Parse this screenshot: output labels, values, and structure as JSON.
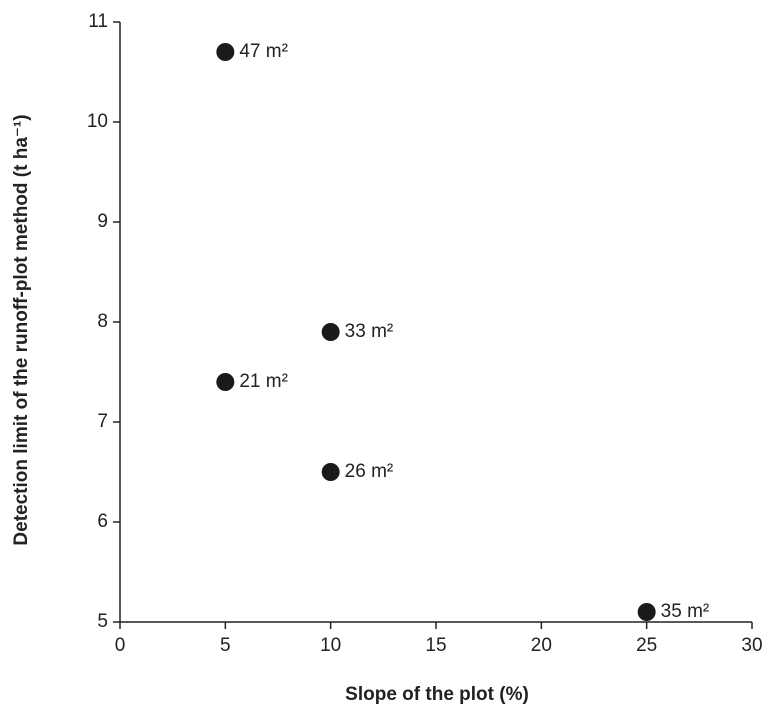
{
  "chart_data": {
    "type": "scatter",
    "x_label": "Slope of the plot (%)",
    "y_label": "Detection limit of the runoff-plot method (t ha⁻¹)",
    "x": [
      5,
      10,
      5,
      10,
      25
    ],
    "values": [
      10.7,
      7.9,
      7.4,
      6.5,
      5.1
    ],
    "point_labels": [
      "47 m²",
      "33 m²",
      "21 m²",
      "26 m²",
      "35 m²"
    ],
    "color": "#1a1a1a",
    "xlim": [
      0,
      30
    ],
    "xticks": [
      0,
      5,
      10,
      15,
      20,
      25,
      30
    ],
    "ylim": [
      5,
      11
    ],
    "yticks": [
      5,
      6,
      7,
      8,
      9,
      10,
      11
    ],
    "grid": false
  }
}
